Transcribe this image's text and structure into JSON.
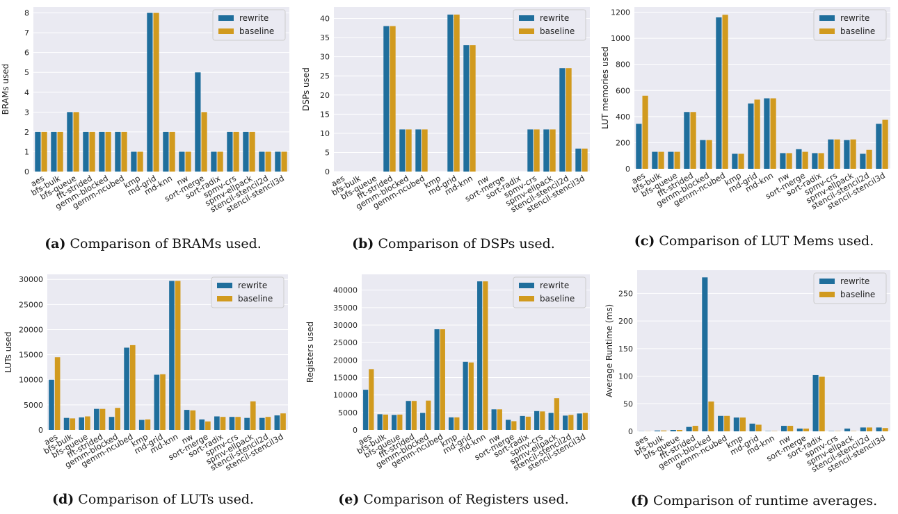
{
  "colors": {
    "rewrite": "#1f6e9c",
    "baseline": "#d19a1e",
    "plot_bg": "#eaeaf2",
    "grid": "#ffffff"
  },
  "chart_data": [
    {
      "type": "bar",
      "categories": [
        "aes",
        "bfs-bulk",
        "bfs-queue",
        "fft-strided",
        "gemm-blocked",
        "gemm-ncubed",
        "kmp",
        "md-grid",
        "md-knn",
        "nw",
        "sort-merge",
        "sort-radix",
        "spmv-crs",
        "spmv-ellpack",
        "stencil-stencil2d",
        "stencil-stencil3d"
      ],
      "series": [
        {
          "name": "rewrite",
          "values": [
            2,
            2,
            3,
            2,
            2,
            2,
            1,
            8,
            2,
            1,
            5,
            1,
            2,
            2,
            1,
            1
          ]
        },
        {
          "name": "baseline",
          "values": [
            2,
            2,
            3,
            2,
            2,
            2,
            1,
            8,
            2,
            1,
            3,
            1,
            2,
            2,
            1,
            1
          ]
        }
      ],
      "ylabel": "BRAMs used",
      "ylim": [
        0,
        8.3
      ],
      "yticks": [
        "0",
        "1",
        "2",
        "3",
        "4",
        "5",
        "6",
        "7",
        "8"
      ],
      "legend": "top-right",
      "grid": true,
      "caption_label": "(a)",
      "caption_text": "Comparison of BRAMs used."
    },
    {
      "type": "bar",
      "categories": [
        "aes",
        "bfs-bulk",
        "bfs-queue",
        "fft-strided",
        "gemm-blocked",
        "gemm-ncubed",
        "kmp",
        "md-grid",
        "md-knn",
        "nw",
        "sort-merge",
        "sort-radix",
        "spmv-crs",
        "spmv-ellpack",
        "stencil-stencil2d",
        "stencil-stencil3d"
      ],
      "series": [
        {
          "name": "rewrite",
          "values": [
            0,
            0,
            0,
            38,
            11,
            11,
            0,
            41,
            33,
            0,
            0,
            0,
            11,
            11,
            27,
            6
          ]
        },
        {
          "name": "baseline",
          "values": [
            0,
            0,
            0,
            38,
            11,
            11,
            0,
            41,
            33,
            0,
            0,
            0,
            11,
            11,
            27,
            6
          ]
        }
      ],
      "ylabel": "DSPs used",
      "ylim": [
        0,
        43
      ],
      "yticks": [
        "0",
        "5",
        "10",
        "15",
        "20",
        "25",
        "30",
        "35",
        "40"
      ],
      "legend": "top-right",
      "grid": true,
      "caption_label": "(b)",
      "caption_text": "Comparison of DSPs used."
    },
    {
      "type": "bar",
      "categories": [
        "aes",
        "bfs-bulk",
        "bfs-queue",
        "fft-strided",
        "gemm-blocked",
        "gemm-ncubed",
        "kmp",
        "md-grid",
        "md-knn",
        "nw",
        "sort-merge",
        "sort-radix",
        "spmv-crs",
        "spmv-ellpack",
        "stencil-stencil2d",
        "stencil-stencil3d"
      ],
      "series": [
        {
          "name": "rewrite",
          "values": [
            345,
            130,
            130,
            435,
            220,
            1160,
            115,
            500,
            540,
            120,
            150,
            120,
            225,
            220,
            115,
            345
          ]
        },
        {
          "name": "baseline",
          "values": [
            560,
            130,
            130,
            435,
            220,
            1180,
            115,
            530,
            540,
            120,
            130,
            120,
            225,
            225,
            145,
            375
          ]
        }
      ],
      "ylabel": "LUT memories used",
      "ylim": [
        0,
        1240
      ],
      "yticks": [
        "0",
        "200",
        "400",
        "600",
        "800",
        "1000",
        "1200"
      ],
      "legend": "top-right",
      "grid": true,
      "caption_label": "(c)",
      "caption_text": "Comparison of LUT Mems used."
    },
    {
      "type": "bar",
      "categories": [
        "aes",
        "bfs-bulk",
        "bfs-queue",
        "fft-strided",
        "gemm-blocked",
        "gemm-ncubed",
        "kmp",
        "md-grid",
        "md-knn",
        "nw",
        "sort-merge",
        "sort-radix",
        "spmv-crs",
        "spmv-ellpack",
        "stencil-stencil2d",
        "stencil-stencil3d"
      ],
      "series": [
        {
          "name": "rewrite",
          "values": [
            10000,
            2400,
            2500,
            4200,
            2600,
            16400,
            2000,
            11000,
            29700,
            4000,
            2100,
            2700,
            2600,
            2400,
            2400,
            2900
          ]
        },
        {
          "name": "baseline",
          "values": [
            14500,
            2300,
            2700,
            4200,
            4400,
            16900,
            2100,
            11100,
            29700,
            3900,
            1700,
            2600,
            2600,
            5700,
            2600,
            3300
          ]
        }
      ],
      "ylabel": "LUTs used",
      "ylim": [
        0,
        31000
      ],
      "yticks": [
        "0",
        "5000",
        "10000",
        "15000",
        "20000",
        "25000",
        "30000"
      ],
      "legend": "top-right",
      "grid": true,
      "caption_label": "(d)",
      "caption_text": "Comparison of LUTs used."
    },
    {
      "type": "bar",
      "categories": [
        "aes",
        "bfs-bulk",
        "bfs-queue",
        "fft-strided",
        "gemm-blocked",
        "gemm-ncubed",
        "kmp",
        "md-grid",
        "md-knn",
        "nw",
        "sort-merge",
        "sort-radix",
        "spmv-crs",
        "spmv-ellpack",
        "stencil-stencil2d",
        "stencil-stencil3d"
      ],
      "series": [
        {
          "name": "rewrite",
          "values": [
            11500,
            4500,
            4300,
            8300,
            4900,
            28800,
            3600,
            19500,
            42500,
            5900,
            2900,
            4000,
            5400,
            4900,
            4100,
            4700
          ]
        },
        {
          "name": "baseline",
          "values": [
            17400,
            4400,
            4400,
            8300,
            8400,
            28800,
            3600,
            19300,
            42500,
            5900,
            2500,
            3800,
            5300,
            9100,
            4300,
            4900
          ]
        }
      ],
      "ylabel": "Registers used",
      "ylim": [
        0,
        44500
      ],
      "yticks": [
        "0",
        "5000",
        "10000",
        "15000",
        "20000",
        "25000",
        "30000",
        "35000",
        "40000"
      ],
      "legend": "top-right",
      "grid": true,
      "caption_label": "(e)",
      "caption_text": "Comparison of Registers used."
    },
    {
      "type": "bar",
      "categories": [
        "aes",
        "bfs-bulk",
        "bfs-queue",
        "fft-strided",
        "gemm-blocked",
        "gemm-ncubed",
        "kmp",
        "md-grid",
        "md-knn",
        "nw",
        "sort-merge",
        "sort-radix",
        "spmv-crs",
        "spmv-ellpack",
        "stencil-stencil2d",
        "stencil-stencil3d"
      ],
      "series": [
        {
          "name": "rewrite",
          "values": [
            0.3,
            1.5,
            2.5,
            8,
            279,
            28,
            25,
            14,
            0.5,
            10,
            5,
            102,
            0.5,
            5,
            7,
            7
          ]
        },
        {
          "name": "baseline",
          "values": [
            0.3,
            1.5,
            2.5,
            10,
            54,
            28,
            25,
            12,
            0.5,
            10,
            5,
            99,
            0.5,
            0.5,
            7,
            6
          ]
        }
      ],
      "ylabel": "Average Runtime (ms)",
      "ylim": [
        0,
        292
      ],
      "yticks": [
        "0",
        "50",
        "100",
        "150",
        "200",
        "250"
      ],
      "legend": "top-right",
      "grid": true,
      "caption_label": "(f)",
      "caption_text": "Comparison of runtime averages."
    }
  ]
}
